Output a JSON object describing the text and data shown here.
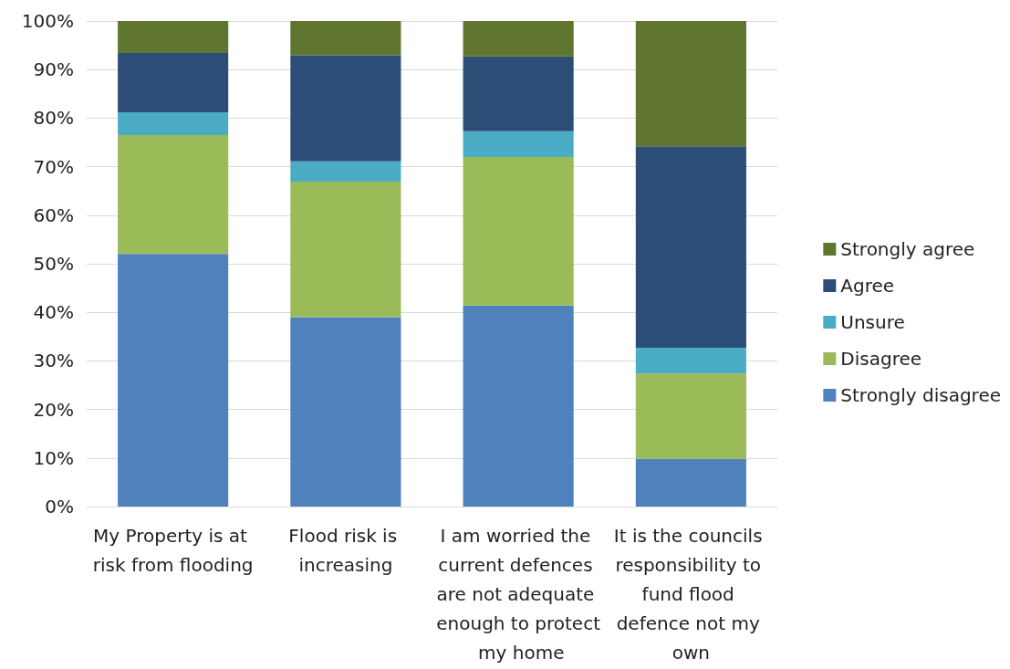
{
  "chart_data": {
    "type": "bar",
    "stacked": true,
    "categories": [
      "My Property is at risk from flooding",
      "Flood risk is increasing",
      "I am worried the current defences are not adequate enough to protect my home",
      "It is the councils responsibility to fund flood defence not my own"
    ],
    "series": [
      {
        "name": "Strongly disagree",
        "color": "#4f81bd",
        "values": [
          52,
          39,
          41.4,
          9.8
        ]
      },
      {
        "name": "Disagree",
        "color": "#9bbb59",
        "values": [
          24.5,
          27.9,
          30.6,
          17.6
        ]
      },
      {
        "name": "Unsure",
        "color": "#4bacc6",
        "values": [
          4.7,
          4.2,
          5.3,
          5.3
        ]
      },
      {
        "name": "Agree",
        "color": "#2c4d75",
        "values": [
          12.2,
          21.8,
          15.4,
          41.5
        ]
      },
      {
        "name": "Strongly agree",
        "color": "#5f7530",
        "values": [
          6.6,
          7.1,
          7.3,
          25.8
        ]
      }
    ],
    "ylim": [
      0,
      100
    ],
    "yticks": [
      {
        "value": 0,
        "label": "0%"
      },
      {
        "value": 10,
        "label": "10%"
      },
      {
        "value": 20,
        "label": "20%"
      },
      {
        "value": 30,
        "label": "30%"
      },
      {
        "value": 40,
        "label": "40%"
      },
      {
        "value": 50,
        "label": "50%"
      },
      {
        "value": 60,
        "label": "60%"
      },
      {
        "value": 70,
        "label": "70%"
      },
      {
        "value": 80,
        "label": "80%"
      },
      {
        "value": 90,
        "label": "90%"
      },
      {
        "value": 100,
        "label": "100%"
      }
    ],
    "grid": "y",
    "legend": "right"
  }
}
